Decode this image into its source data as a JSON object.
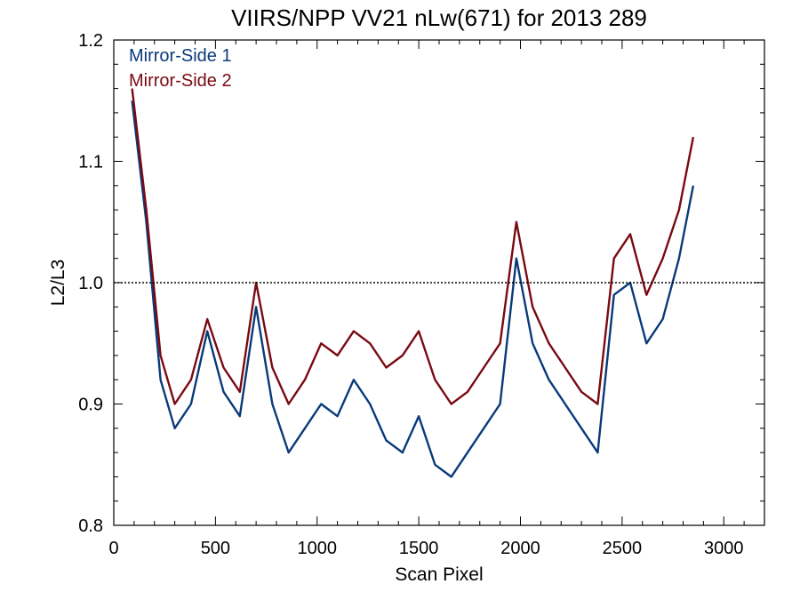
{
  "chart_data": {
    "type": "line",
    "title": "VIIRS/NPP VV21 nLw(671) for 2013 289",
    "xlabel": "Scan Pixel",
    "ylabel": "L2/L3",
    "xlim": [
      0,
      3200
    ],
    "ylim": [
      0.8,
      1.2
    ],
    "x_ticks": [
      "0",
      "500",
      "1000",
      "1500",
      "2000",
      "2500",
      "3000"
    ],
    "y_ticks": [
      "0.8",
      "0.9",
      "1.0",
      "1.1",
      "1.2"
    ],
    "reference_line": 1.0,
    "grid": false,
    "legend_position": "top-left",
    "series": [
      {
        "name": "Mirror-Side 1",
        "color": "#0a3a7a",
        "x": [
          90,
          160,
          230,
          300,
          380,
          460,
          540,
          620,
          700,
          780,
          860,
          940,
          1020,
          1100,
          1180,
          1260,
          1340,
          1420,
          1500,
          1580,
          1660,
          1740,
          1820,
          1900,
          1980,
          2060,
          2140,
          2220,
          2300,
          2380,
          2460,
          2540,
          2620,
          2700,
          2780,
          2850
        ],
        "values": [
          1.15,
          1.05,
          0.92,
          0.88,
          0.9,
          0.96,
          0.91,
          0.89,
          0.98,
          0.9,
          0.86,
          0.88,
          0.9,
          0.89,
          0.92,
          0.9,
          0.87,
          0.86,
          0.89,
          0.85,
          0.84,
          0.86,
          0.88,
          0.9,
          1.02,
          0.95,
          0.92,
          0.9,
          0.88,
          0.86,
          0.99,
          1.0,
          0.95,
          0.97,
          1.02,
          1.08
        ]
      },
      {
        "name": "Mirror-Side 2",
        "color": "#7a0a12",
        "x": [
          90,
          160,
          230,
          300,
          380,
          460,
          540,
          620,
          700,
          780,
          860,
          940,
          1020,
          1100,
          1180,
          1260,
          1340,
          1420,
          1500,
          1580,
          1660,
          1740,
          1820,
          1900,
          1980,
          2060,
          2140,
          2220,
          2300,
          2380,
          2460,
          2540,
          2620,
          2700,
          2780,
          2850
        ],
        "values": [
          1.16,
          1.06,
          0.94,
          0.9,
          0.92,
          0.97,
          0.93,
          0.91,
          1.0,
          0.93,
          0.9,
          0.92,
          0.95,
          0.94,
          0.96,
          0.95,
          0.93,
          0.94,
          0.96,
          0.92,
          0.9,
          0.91,
          0.93,
          0.95,
          1.05,
          0.98,
          0.95,
          0.93,
          0.91,
          0.9,
          1.02,
          1.04,
          0.99,
          1.02,
          1.06,
          1.12
        ]
      }
    ]
  }
}
